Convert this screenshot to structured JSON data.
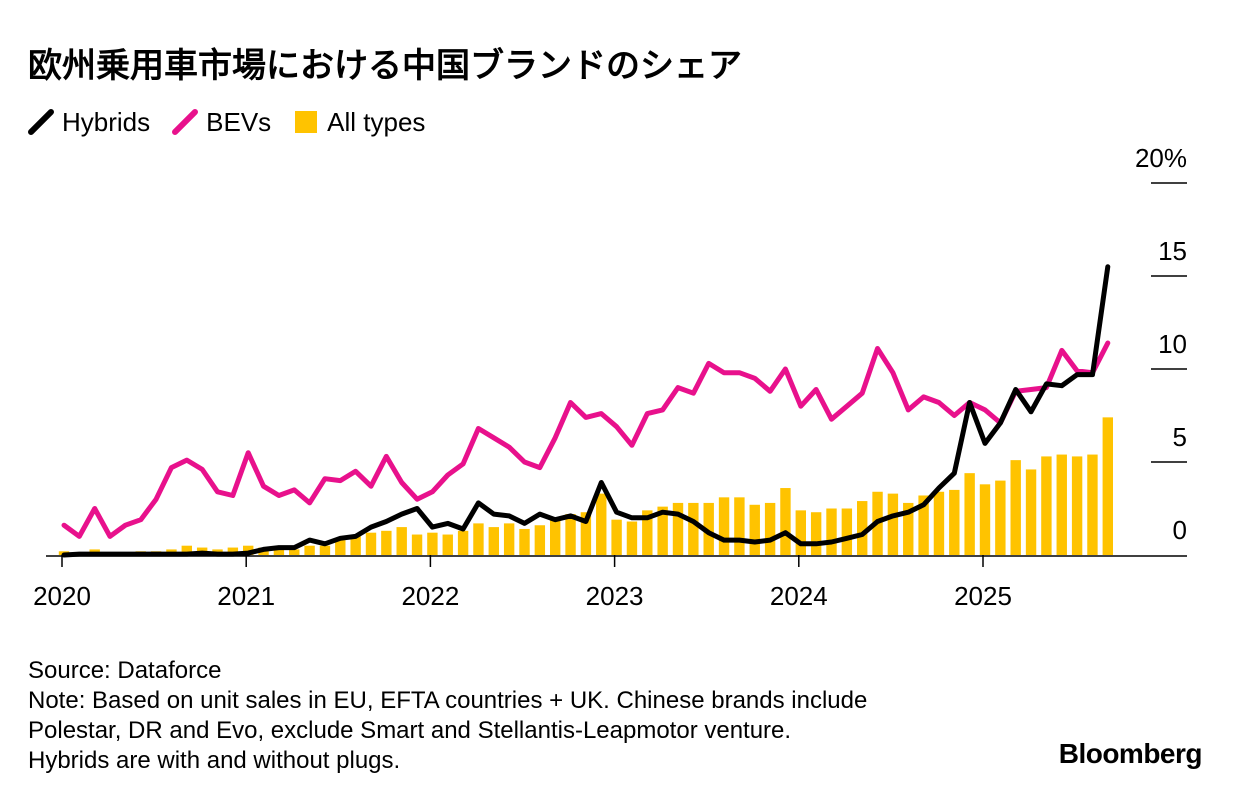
{
  "title": "欧州乗用車市場における中国ブランドのシェア",
  "legend": [
    {
      "label": "Hybrids",
      "color": "#000000"
    },
    {
      "label": "BEVs",
      "color": "#e8118c"
    },
    {
      "label": "All types",
      "color": "#ffc300"
    }
  ],
  "footer": {
    "source": "Source: Dataforce",
    "note_lines": [
      "Note: Based on unit sales in EU, EFTA countries + UK. Chinese brands include",
      "Polestar, DR and Evo, exclude Smart and Stellantis-Leapmotor venture.",
      "Hybrids are with and without plugs."
    ]
  },
  "brand": "Bloomberg",
  "chart_data": {
    "type": "bar+line",
    "unit": "%",
    "ylim": [
      0,
      20
    ],
    "y_ticks": [
      {
        "value": 0,
        "label": "0"
      },
      {
        "value": 5,
        "label": "5"
      },
      {
        "value": 10,
        "label": "10"
      },
      {
        "value": 15,
        "label": "15"
      },
      {
        "value": 20,
        "label": "20%"
      }
    ],
    "x_ticks": [
      {
        "month_index": 0,
        "label": "2020"
      },
      {
        "month_index": 12,
        "label": "2021"
      },
      {
        "month_index": 24,
        "label": "2022"
      },
      {
        "month_index": 36,
        "label": "2023"
      },
      {
        "month_index": 48,
        "label": "2024"
      },
      {
        "month_index": 60,
        "label": "2025"
      }
    ],
    "start": "2020-01",
    "series": [
      {
        "name": "All types",
        "kind": "bar",
        "color": "#ffc300",
        "values": [
          0.2,
          0.1,
          0.3,
          0.1,
          0.1,
          0.2,
          0.2,
          0.3,
          0.5,
          0.4,
          0.3,
          0.4,
          0.5,
          0.4,
          0.3,
          0.3,
          0.5,
          0.5,
          0.8,
          1.0,
          1.2,
          1.3,
          1.5,
          1.1,
          1.2,
          1.1,
          1.3,
          1.7,
          1.5,
          1.7,
          1.4,
          1.6,
          1.9,
          2.2,
          2.3,
          3.3,
          1.9,
          1.8,
          2.4,
          2.6,
          2.8,
          2.8,
          2.8,
          3.1,
          3.1,
          2.7,
          2.8,
          3.6,
          2.4,
          2.3,
          2.5,
          2.5,
          2.9,
          3.4,
          3.3,
          2.8,
          3.2,
          3.4,
          3.5,
          4.4,
          3.8,
          4.0,
          5.1,
          4.6,
          5.3,
          5.4,
          5.3,
          5.4,
          7.4
        ]
      },
      {
        "name": "BEVs",
        "kind": "line",
        "color": "#e8118c",
        "values": [
          1.6,
          1.0,
          2.5,
          1.0,
          1.6,
          1.9,
          3.0,
          4.7,
          5.1,
          4.6,
          3.4,
          3.2,
          5.5,
          3.7,
          3.2,
          3.5,
          2.8,
          4.1,
          4.0,
          4.5,
          3.7,
          5.3,
          3.9,
          3.0,
          3.4,
          4.3,
          4.9,
          6.8,
          6.3,
          5.8,
          5.0,
          4.7,
          6.3,
          8.2,
          7.4,
          7.6,
          6.9,
          5.9,
          7.6,
          7.8,
          9.0,
          8.7,
          10.3,
          9.8,
          9.8,
          9.5,
          8.8,
          10.0,
          8.0,
          8.9,
          7.3,
          8.0,
          8.7,
          11.1,
          9.8,
          7.8,
          8.5,
          8.2,
          7.5,
          8.2,
          7.8,
          7.1,
          8.8,
          8.9,
          9.0,
          11.0,
          9.9,
          9.8,
          11.4
        ]
      },
      {
        "name": "Hybrids",
        "kind": "line",
        "color": "#000000",
        "values": [
          0.0,
          0.05,
          0.05,
          0.05,
          0.05,
          0.05,
          0.05,
          0.05,
          0.05,
          0.1,
          0.05,
          0.05,
          0.1,
          0.3,
          0.4,
          0.4,
          0.8,
          0.6,
          0.9,
          1.0,
          1.5,
          1.8,
          2.2,
          2.5,
          1.5,
          1.7,
          1.4,
          2.8,
          2.2,
          2.1,
          1.7,
          2.2,
          1.9,
          2.1,
          1.8,
          3.9,
          2.3,
          2.0,
          2.0,
          2.3,
          2.2,
          1.8,
          1.2,
          0.8,
          0.8,
          0.7,
          0.8,
          1.2,
          0.6,
          0.6,
          0.7,
          0.9,
          1.1,
          1.8,
          2.1,
          2.3,
          2.7,
          3.6,
          4.4,
          8.2,
          6.0,
          7.1,
          8.9,
          7.7,
          9.2,
          9.1,
          9.7,
          9.7,
          15.5
        ]
      }
    ]
  }
}
